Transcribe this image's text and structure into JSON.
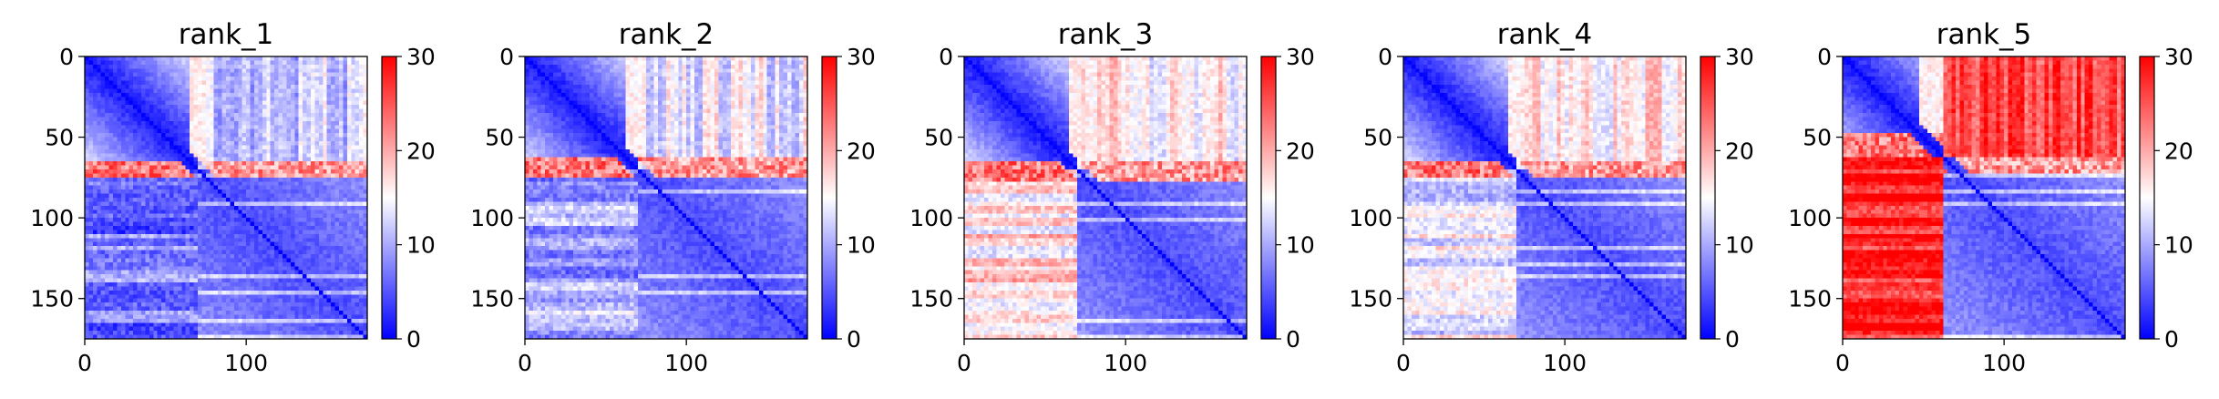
{
  "chart_data": [
    {
      "type": "heatmap",
      "title": "rank_1",
      "xlabel": "",
      "ylabel": "",
      "x_ticks": [
        0,
        100
      ],
      "y_ticks": [
        0,
        50,
        100,
        150
      ],
      "xlim": [
        0,
        175
      ],
      "ylim": [
        175,
        0
      ],
      "colorbar": {
        "min": 0,
        "max": 30,
        "ticks": [
          0,
          10,
          20,
          30
        ],
        "colormap": "bwr",
        "low_color": "#0000ff",
        "mid_color": "#ffffff",
        "high_color": "#ff0000"
      },
      "matrix_size": 175,
      "band": {
        "start": 63,
        "end": 73
      },
      "block_top_right": 12,
      "block_bottom_left": 7,
      "region_split": 70,
      "gridlines": false
    },
    {
      "type": "heatmap",
      "title": "rank_2",
      "xlabel": "",
      "ylabel": "",
      "x_ticks": [
        0,
        100
      ],
      "y_ticks": [
        0,
        50,
        100,
        150
      ],
      "xlim": [
        0,
        175
      ],
      "ylim": [
        175,
        0
      ],
      "colorbar": {
        "min": 0,
        "max": 30,
        "ticks": [
          0,
          10,
          20,
          30
        ],
        "colormap": "bwr",
        "low_color": "#0000ff",
        "mid_color": "#ffffff",
        "high_color": "#ff0000"
      },
      "matrix_size": 175,
      "band": {
        "start": 62,
        "end": 73
      },
      "block_top_right": 14,
      "block_bottom_left": 10,
      "region_split": 70,
      "gridlines": false
    },
    {
      "type": "heatmap",
      "title": "rank_3",
      "xlabel": "",
      "ylabel": "",
      "x_ticks": [
        0,
        100
      ],
      "y_ticks": [
        0,
        50,
        100,
        150
      ],
      "xlim": [
        0,
        175
      ],
      "ylim": [
        175,
        0
      ],
      "colorbar": {
        "min": 0,
        "max": 30,
        "ticks": [
          0,
          10,
          20,
          30
        ],
        "colormap": "bwr",
        "low_color": "#0000ff",
        "mid_color": "#ffffff",
        "high_color": "#ff0000"
      },
      "matrix_size": 175,
      "band": {
        "start": 64,
        "end": 75
      },
      "block_top_right": 16,
      "block_bottom_left": 17,
      "region_split": 70,
      "gridlines": false
    },
    {
      "type": "heatmap",
      "title": "rank_4",
      "xlabel": "",
      "ylabel": "",
      "x_ticks": [
        0,
        100
      ],
      "y_ticks": [
        0,
        50,
        100,
        150
      ],
      "xlim": [
        0,
        175
      ],
      "ylim": [
        175,
        0
      ],
      "colorbar": {
        "min": 0,
        "max": 30,
        "ticks": [
          0,
          10,
          20,
          30
        ],
        "colormap": "bwr",
        "low_color": "#0000ff",
        "mid_color": "#ffffff",
        "high_color": "#ff0000"
      },
      "matrix_size": 175,
      "band": {
        "start": 63,
        "end": 74
      },
      "block_top_right": 16,
      "block_bottom_left": 14,
      "region_split": 70,
      "gridlines": false
    },
    {
      "type": "heatmap",
      "title": "rank_5",
      "xlabel": "",
      "ylabel": "",
      "x_ticks": [
        0,
        100
      ],
      "y_ticks": [
        0,
        50,
        100,
        150
      ],
      "xlim": [
        0,
        175
      ],
      "ylim": [
        175,
        0
      ],
      "colorbar": {
        "min": 0,
        "max": 30,
        "ticks": [
          0,
          10,
          20,
          30
        ],
        "colormap": "bwr",
        "low_color": "#0000ff",
        "mid_color": "#ffffff",
        "high_color": "#ff0000"
      },
      "matrix_size": 175,
      "band": {
        "start": 47,
        "end": 72
      },
      "block_top_right": 26,
      "block_bottom_left": 28,
      "region_split": 62,
      "gridlines": false
    }
  ]
}
